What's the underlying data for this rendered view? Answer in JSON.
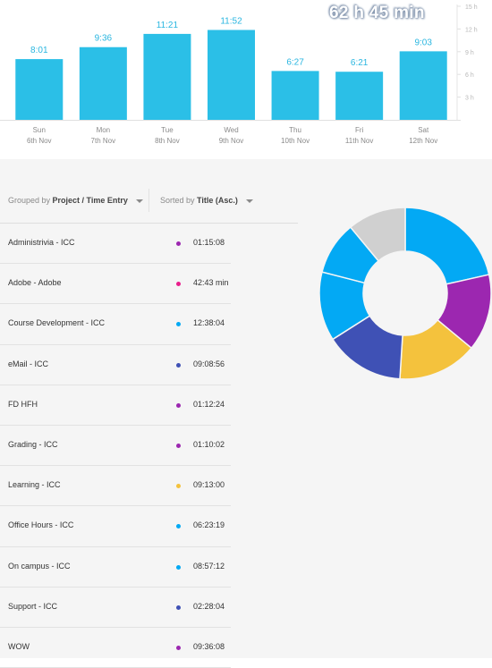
{
  "total_time": "62 h 45 min",
  "chart_data": {
    "type": "bar",
    "categories": [
      "Sun 6th Nov",
      "Mon 7th Nov",
      "Tue 8th Nov",
      "Wed 9th Nov",
      "Thu 10th Nov",
      "Fri 11th Nov",
      "Sat 12th Nov"
    ],
    "days": [
      {
        "day": "Sun",
        "date": "6th Nov",
        "label": "8:01",
        "hours": 8.02
      },
      {
        "day": "Mon",
        "date": "7th Nov",
        "label": "9:36",
        "hours": 9.6
      },
      {
        "day": "Tue",
        "date": "8th Nov",
        "label": "11:21",
        "hours": 11.35
      },
      {
        "day": "Wed",
        "date": "9th Nov",
        "label": "11:52",
        "hours": 11.87
      },
      {
        "day": "Thu",
        "date": "10th Nov",
        "label": "6:27",
        "hours": 6.45
      },
      {
        "day": "Fri",
        "date": "11th Nov",
        "label": "6:21",
        "hours": 6.35
      },
      {
        "day": "Sat",
        "date": "12th Nov",
        "label": "9:03",
        "hours": 9.05
      }
    ],
    "values": [
      8.02,
      9.6,
      11.35,
      11.87,
      6.45,
      6.35,
      9.05
    ],
    "yticks": [
      "15 h",
      "12 h",
      "9 h",
      "6 h",
      "3 h"
    ],
    "ytick_values": [
      15,
      12,
      9,
      6,
      3
    ],
    "ylim": [
      0,
      15
    ],
    "bar_color": "#2bbfe7",
    "value_label_color": "#29b6e0"
  },
  "controls": {
    "group_prefix": "Grouped by",
    "group_value": "Project / Time Entry",
    "sort_prefix": "Sorted by",
    "sort_value": "Title (Asc.)"
  },
  "entries": [
    {
      "title": "Administrivia - ICC",
      "duration": "01:15:08",
      "color": "#9c27b0"
    },
    {
      "title": "Adobe - Adobe",
      "duration": "42:43 min",
      "color": "#e91e8c"
    },
    {
      "title": "Course Development - ICC",
      "duration": "12:38:04",
      "color": "#03a9f4"
    },
    {
      "title": "eMail - ICC",
      "duration": "09:08:56",
      "color": "#3f51b5"
    },
    {
      "title": "FD HFH",
      "duration": "01:12:24",
      "color": "#9c27b0"
    },
    {
      "title": "Grading - ICC",
      "duration": "01:10:02",
      "color": "#9c27b0"
    },
    {
      "title": "Learning - ICC",
      "duration": "09:13:00",
      "color": "#f4c23d"
    },
    {
      "title": "Office Hours - ICC",
      "duration": "06:23:19",
      "color": "#03a9f4"
    },
    {
      "title": "On campus - ICC",
      "duration": "08:57:12",
      "color": "#03a9f4"
    },
    {
      "title": "Support - ICC",
      "duration": "02:28:04",
      "color": "#3f51b5"
    },
    {
      "title": "WOW",
      "duration": "09:36:08",
      "color": "#9c27b0"
    }
  ],
  "donut": {
    "segments": [
      {
        "value": 21.5,
        "color": "#03a9f4"
      },
      {
        "value": 14.5,
        "color": "#9c27b0"
      },
      {
        "value": 15.0,
        "color": "#f4c23d"
      },
      {
        "value": 15.0,
        "color": "#3f51b5"
      },
      {
        "value": 13.0,
        "color": "#03a9f4"
      },
      {
        "value": 10.0,
        "color": "#03a9f4"
      },
      {
        "value": 11.0,
        "color": "#d0d0d0"
      }
    ]
  }
}
